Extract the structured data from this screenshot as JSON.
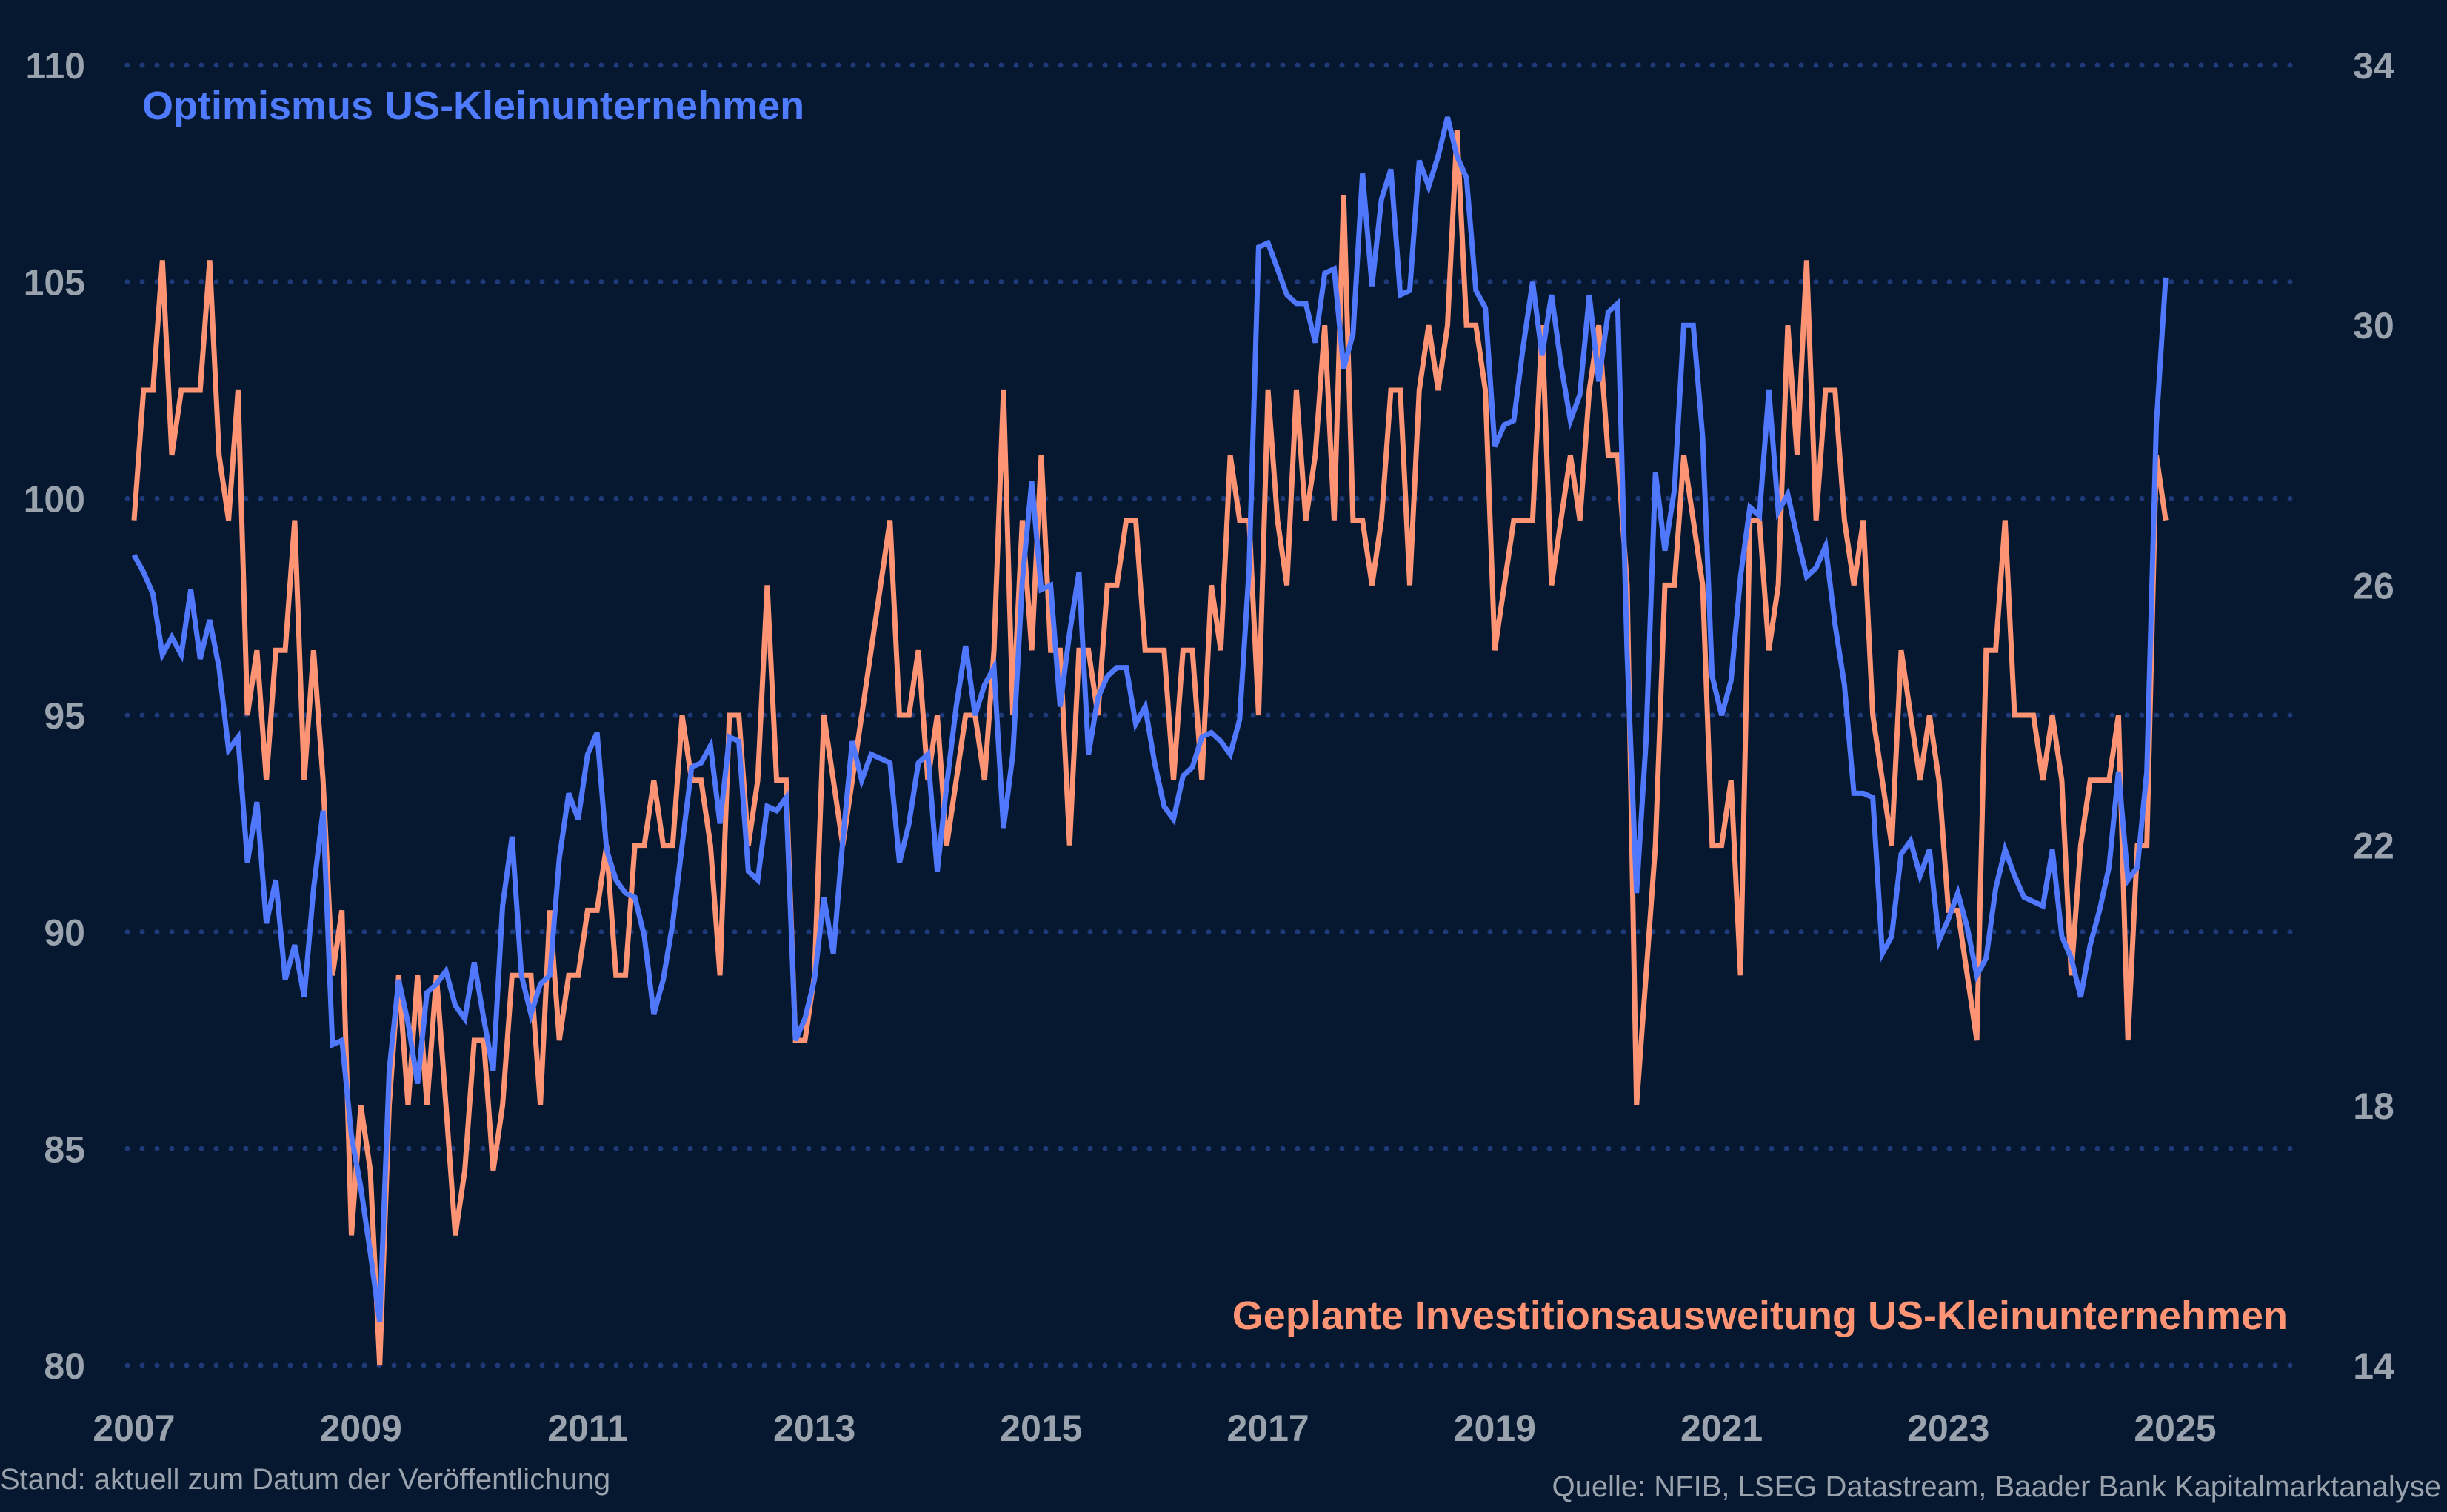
{
  "chart_data": {
    "type": "line",
    "x_start": "2007-01",
    "x_frequency": "monthly",
    "x_tick_labels": [
      "2007",
      "2009",
      "2011",
      "2013",
      "2015",
      "2017",
      "2019",
      "2021",
      "2023",
      "2025"
    ],
    "y_left": {
      "ylim": [
        80,
        110
      ],
      "ticks": [
        "80",
        "85",
        "90",
        "95",
        "100",
        "105",
        "110"
      ]
    },
    "y_right": {
      "ylim": [
        14,
        34
      ],
      "ticks": [
        "14",
        "18",
        "22",
        "26",
        "30",
        "34"
      ]
    },
    "grid": "horizontal dotted",
    "series": [
      {
        "name": "Optimismus US-Kleinunternehmen",
        "axis": "left",
        "color": "#4f78ff",
        "values": [
          98.7,
          98.3,
          97.8,
          96.4,
          96.8,
          96.4,
          97.9,
          96.3,
          97.2,
          96.1,
          94.2,
          94.5,
          91.6,
          93.0,
          90.2,
          91.2,
          88.9,
          89.7,
          88.5,
          91.0,
          92.8,
          87.4,
          87.5,
          85.3,
          84.1,
          82.6,
          81.0,
          86.8,
          88.9,
          87.9,
          86.5,
          88.6,
          88.8,
          89.1,
          88.3,
          88.0,
          89.3,
          88.0,
          86.8,
          90.6,
          92.2,
          89.0,
          88.1,
          88.8,
          89.0,
          91.7,
          93.2,
          92.6,
          94.1,
          94.6,
          91.9,
          91.2,
          90.9,
          90.8,
          89.9,
          88.1,
          88.9,
          90.2,
          92.0,
          93.8,
          93.9,
          94.3,
          92.5,
          94.5,
          94.4,
          91.4,
          91.2,
          92.9,
          92.8,
          93.1,
          87.5,
          88.0,
          88.9,
          90.8,
          89.5,
          92.1,
          94.4,
          93.5,
          94.1,
          94.0,
          93.9,
          91.6,
          92.5,
          93.9,
          94.1,
          91.4,
          93.4,
          95.2,
          96.6,
          95.0,
          95.7,
          96.1,
          92.4,
          94.1,
          98.1,
          100.4,
          97.9,
          98.0,
          95.2,
          96.9,
          98.3,
          94.1,
          95.4,
          95.9,
          96.1,
          96.1,
          94.8,
          95.2,
          93.9,
          92.9,
          92.6,
          93.6,
          93.8,
          94.5,
          94.6,
          94.4,
          94.1,
          94.9,
          98.4,
          105.8,
          105.9,
          105.3,
          104.7,
          104.5,
          104.5,
          103.6,
          105.2,
          105.3,
          103.0,
          103.8,
          107.5,
          104.9,
          106.9,
          107.6,
          104.7,
          104.8,
          107.8,
          107.2,
          107.9,
          108.8,
          107.9,
          107.4,
          104.8,
          104.4,
          101.2,
          101.7,
          101.8,
          103.5,
          105.0,
          103.3,
          104.7,
          103.1,
          101.8,
          102.4,
          104.7,
          102.7,
          104.3,
          104.5,
          96.4,
          90.9,
          94.4,
          100.6,
          98.8,
          100.2,
          104.0,
          104.0,
          101.4,
          95.9,
          95.0,
          95.8,
          98.2,
          99.8,
          99.6,
          102.5,
          99.7,
          100.1,
          99.1,
          98.2,
          98.4,
          98.9,
          97.1,
          95.7,
          93.2,
          93.2,
          93.1,
          89.5,
          89.9,
          91.8,
          92.1,
          91.3,
          91.9,
          89.8,
          90.3,
          90.9,
          90.1,
          89.0,
          89.4,
          91.0,
          91.9,
          91.3,
          90.8,
          90.7,
          90.6,
          91.9,
          89.9,
          89.4,
          88.5,
          89.7,
          90.5,
          91.5,
          93.7,
          91.2,
          91.5,
          93.7,
          101.7,
          105.1
        ]
      },
      {
        "name": "Geplante Investitionsausweitung US-Kleinunternehmen",
        "axis": "right",
        "color": "#ff9474",
        "values": [
          27,
          29,
          29,
          31,
          28,
          29,
          29,
          29,
          31,
          28,
          27,
          29,
          24,
          25,
          23,
          25,
          25,
          27,
          23,
          25,
          23,
          20,
          21,
          16,
          18,
          17,
          14,
          18,
          20,
          18,
          20,
          18,
          20,
          18,
          16,
          17,
          19,
          19,
          17,
          18,
          20,
          20,
          20,
          18,
          21,
          19,
          20,
          20,
          21,
          21,
          22,
          20,
          20,
          22,
          22,
          23,
          22,
          22,
          24,
          23,
          23,
          22,
          20,
          24,
          24,
          22,
          23,
          26,
          23,
          23,
          19,
          19,
          20,
          24,
          23,
          22,
          23,
          24,
          25,
          26,
          27,
          24,
          24,
          25,
          23,
          24,
          22,
          23,
          24,
          24,
          23,
          25,
          29,
          24,
          27,
          25,
          28,
          25,
          25,
          22,
          25,
          25,
          24,
          26,
          26,
          27,
          27,
          25,
          25,
          25,
          23,
          25,
          25,
          23,
          26,
          25,
          28,
          27,
          27,
          24,
          29,
          27,
          26,
          29,
          27,
          28,
          30,
          27,
          32,
          27,
          27,
          26,
          27,
          29,
          29,
          26,
          29,
          30,
          29,
          30,
          33,
          30,
          30,
          29,
          25,
          26,
          27,
          27,
          27,
          30,
          26,
          27,
          28,
          27,
          29,
          30,
          28,
          28,
          26,
          18,
          20,
          22,
          26,
          26,
          28,
          27,
          26,
          22,
          22,
          23,
          20,
          27,
          27,
          25,
          26,
          30,
          28,
          31,
          27,
          29,
          29,
          27,
          26,
          27,
          24,
          23,
          22,
          25,
          24,
          23,
          24,
          23,
          21,
          21,
          20,
          19,
          25,
          25,
          27,
          24,
          24,
          24,
          23,
          24,
          23,
          20,
          22,
          23,
          23,
          23,
          24,
          19,
          22,
          22,
          28,
          27
        ]
      }
    ]
  },
  "labels": {
    "series_a": "Optimismus US-Kleinunternehmen",
    "series_b": "Geplante Investitionsausweitung US-Kleinunternehmen"
  },
  "footer": {
    "left": "Stand: aktuell zum Datum der Veröffentlichung",
    "right": "Quelle: NFIB, LSEG Datastream, Baader Bank Kapitalmarktanalyse"
  },
  "colors": {
    "background": "#051830",
    "grid": "#1f3a78",
    "tick_text": "#9aa3ad"
  }
}
